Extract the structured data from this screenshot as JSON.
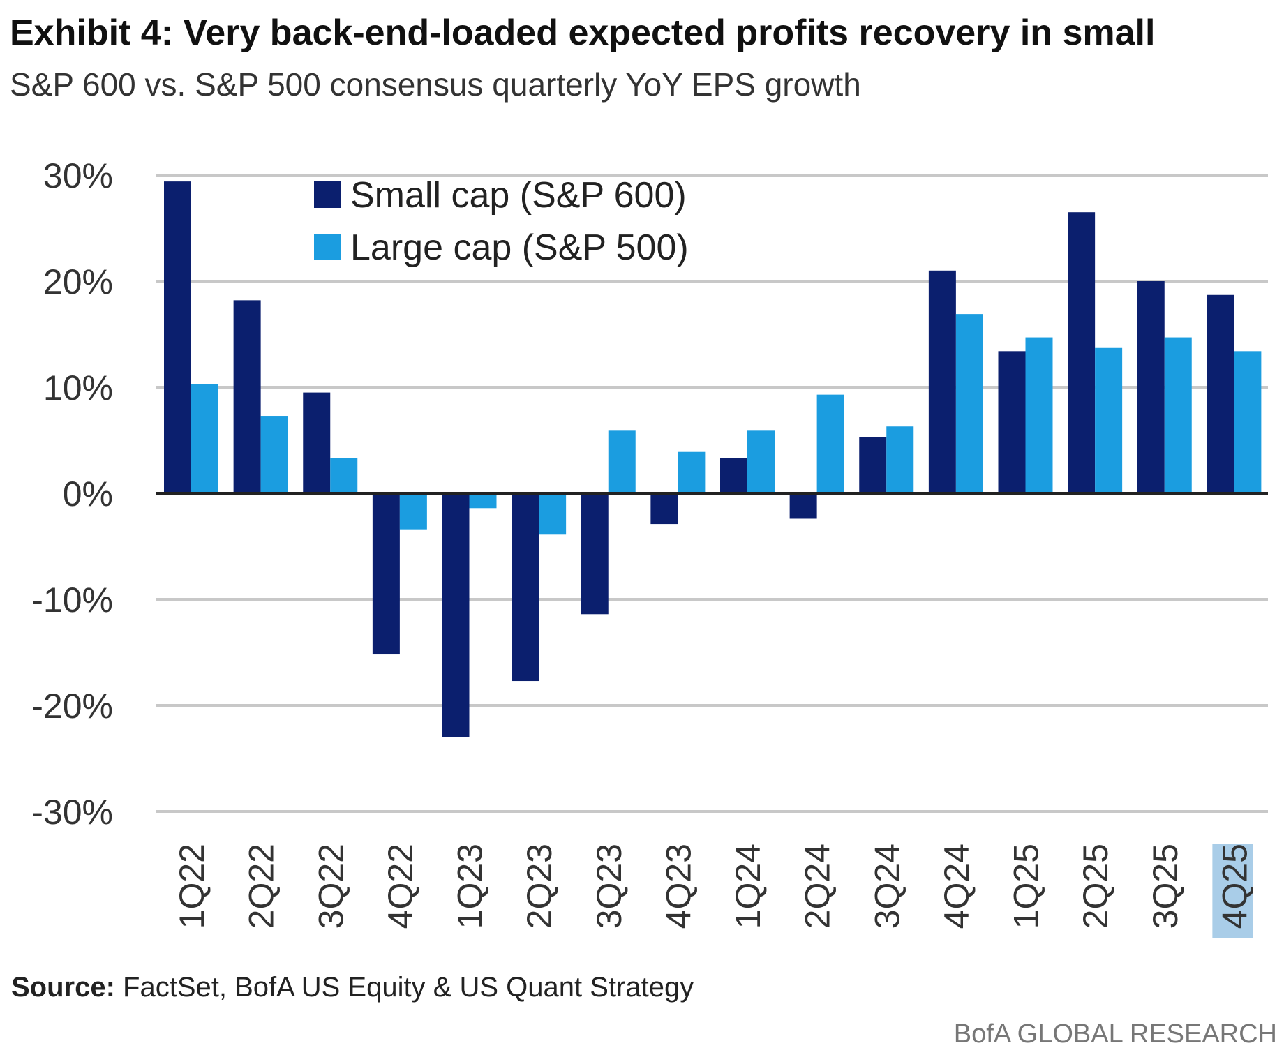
{
  "title": "Exhibit 4: Very back-end-loaded expected profits recovery in small",
  "subtitle": "S&P 600 vs. S&P 500 consensus quarterly YoY EPS growth",
  "source_label": "Source:",
  "source_text": " FactSet, BofA US Equity & US Quant Strategy",
  "footer": "BofA GLOBAL RESEARCH",
  "colors": {
    "small": "#0b1f6e",
    "large": "#1b9de0",
    "grid": "#c8c8c8",
    "highlight": "#a9cde8"
  },
  "chart_data": {
    "type": "bar",
    "categories": [
      "1Q22",
      "2Q22",
      "3Q22",
      "4Q22",
      "1Q23",
      "2Q23",
      "3Q23",
      "4Q23",
      "1Q24",
      "2Q24",
      "3Q24",
      "4Q24",
      "1Q25",
      "2Q25",
      "3Q25",
      "4Q25"
    ],
    "highlighted_category": "4Q25",
    "series": [
      {
        "name": "Small cap (S&P 600)",
        "values": [
          29.4,
          18.2,
          9.5,
          -15.2,
          -23.0,
          -17.7,
          -11.4,
          -2.9,
          3.3,
          -2.4,
          5.3,
          21.0,
          13.4,
          26.5,
          20.0,
          18.7
        ]
      },
      {
        "name": "Large cap (S&P 500)",
        "values": [
          10.3,
          7.3,
          3.3,
          -3.4,
          -1.4,
          -3.9,
          5.9,
          3.9,
          5.9,
          9.3,
          6.3,
          16.9,
          14.7,
          13.7,
          14.7,
          13.4
        ]
      }
    ],
    "yticks": [
      "30%",
      "20%",
      "10%",
      "0%",
      "-10%",
      "-20%",
      "-30%"
    ],
    "ytick_values": [
      30,
      20,
      10,
      0,
      -10,
      -20,
      -30
    ],
    "ylim": [
      -30,
      30
    ],
    "grid": true,
    "legend": "top-left",
    "xlabel": "",
    "ylabel": ""
  }
}
